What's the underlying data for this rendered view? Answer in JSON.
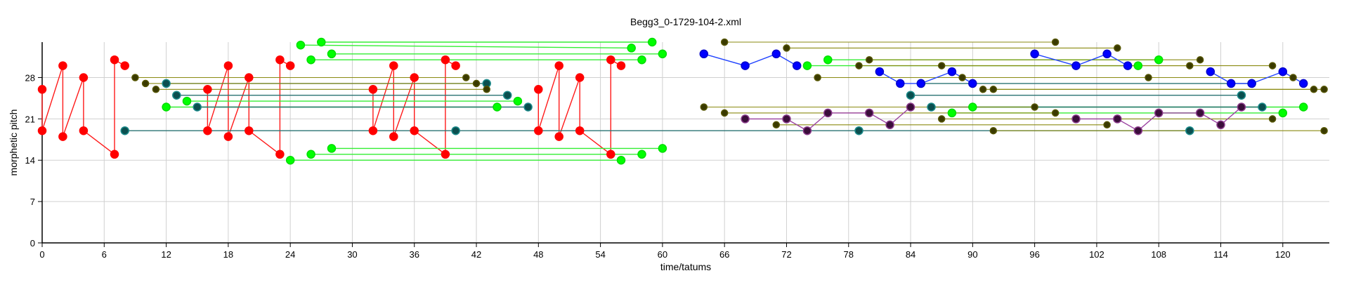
{
  "chart_data": {
    "type": "scatter",
    "title": "Begg3_0-1729-104-2.xml",
    "xlabel": "time/tatums",
    "ylabel": "morphetic pitch",
    "xlim": [
      0,
      124.5
    ],
    "ylim": [
      0,
      34
    ],
    "xticks": [
      0,
      6,
      12,
      18,
      24,
      30,
      36,
      42,
      48,
      54,
      60,
      66,
      72,
      78,
      84,
      90,
      96,
      102,
      108,
      114,
      120
    ],
    "yticks": [
      0,
      7,
      14,
      21,
      28
    ],
    "grid": true,
    "colors": {
      "red": "#ff1a1a",
      "green": "#00ff00",
      "teal": "#1a6b6b",
      "olive": "#888800",
      "blue": "#0000ff",
      "purple": "#800080"
    },
    "series": [
      {
        "color": "red",
        "style": "line",
        "points": [
          [
            0,
            26
          ],
          [
            0,
            19
          ],
          [
            2,
            30
          ],
          [
            2,
            18
          ],
          [
            4,
            28
          ],
          [
            4,
            19
          ],
          [
            7,
            15
          ],
          [
            7,
            31
          ],
          [
            8,
            30
          ]
        ]
      },
      {
        "color": "red",
        "style": "line",
        "points": [
          [
            16,
            26
          ],
          [
            16,
            19
          ],
          [
            18,
            30
          ],
          [
            18,
            18
          ],
          [
            20,
            28
          ],
          [
            20,
            19
          ],
          [
            23,
            15
          ],
          [
            23,
            31
          ],
          [
            24,
            30
          ]
        ]
      },
      {
        "color": "red",
        "style": "line",
        "points": [
          [
            32,
            26
          ],
          [
            32,
            19
          ],
          [
            34,
            30
          ],
          [
            34,
            18
          ],
          [
            36,
            28
          ],
          [
            36,
            19
          ],
          [
            39,
            15
          ],
          [
            39,
            31
          ],
          [
            40,
            30
          ]
        ]
      },
      {
        "color": "red",
        "style": "line",
        "points": [
          [
            48,
            26
          ],
          [
            48,
            19
          ],
          [
            50,
            30
          ],
          [
            50,
            18
          ],
          [
            52,
            28
          ],
          [
            52,
            19
          ],
          [
            55,
            15
          ],
          [
            55,
            31
          ],
          [
            56,
            30
          ]
        ]
      },
      {
        "color": "green",
        "style": "line",
        "points": [
          [
            25,
            33.5
          ],
          [
            57,
            33
          ]
        ]
      },
      {
        "color": "green",
        "style": "line",
        "points": [
          [
            26,
            31
          ],
          [
            58,
            31
          ]
        ]
      },
      {
        "color": "green",
        "style": "line",
        "points": [
          [
            27,
            34
          ],
          [
            59,
            34
          ]
        ]
      },
      {
        "color": "green",
        "style": "line",
        "points": [
          [
            28,
            32
          ],
          [
            60,
            32
          ]
        ]
      },
      {
        "color": "green",
        "style": "line",
        "points": [
          [
            24,
            14
          ],
          [
            56,
            14
          ]
        ]
      },
      {
        "color": "green",
        "style": "line",
        "points": [
          [
            26,
            15
          ],
          [
            58,
            15
          ]
        ]
      },
      {
        "color": "green",
        "style": "line",
        "points": [
          [
            28,
            16
          ],
          [
            60,
            16
          ]
        ]
      },
      {
        "color": "green",
        "style": "line",
        "points": [
          [
            12,
            23
          ],
          [
            44,
            23
          ]
        ]
      },
      {
        "color": "green",
        "style": "line",
        "points": [
          [
            14,
            24
          ],
          [
            46,
            24
          ]
        ]
      },
      {
        "color": "green",
        "style": "line",
        "points": [
          [
            74,
            30
          ],
          [
            106,
            30
          ]
        ]
      },
      {
        "color": "green",
        "style": "line",
        "points": [
          [
            76,
            31
          ],
          [
            108,
            31
          ]
        ]
      },
      {
        "color": "green",
        "style": "line",
        "points": [
          [
            88,
            22
          ],
          [
            120,
            22
          ]
        ]
      },
      {
        "color": "green",
        "style": "line",
        "points": [
          [
            90,
            23
          ],
          [
            122,
            23
          ]
        ]
      },
      {
        "color": "teal",
        "style": "line",
        "points": [
          [
            8,
            19
          ],
          [
            40,
            19
          ],
          [
            79,
            19
          ],
          [
            111,
            19
          ]
        ]
      },
      {
        "color": "teal",
        "style": "line",
        "points": [
          [
            12,
            27
          ],
          [
            43,
            27
          ]
        ]
      },
      {
        "color": "teal",
        "style": "line",
        "points": [
          [
            13,
            25
          ],
          [
            45,
            25
          ]
        ]
      },
      {
        "color": "teal",
        "style": "line",
        "points": [
          [
            15,
            23
          ],
          [
            47,
            23
          ]
        ]
      },
      {
        "color": "teal",
        "style": "line",
        "points": [
          [
            84,
            25
          ],
          [
            116,
            25
          ]
        ]
      },
      {
        "color": "teal",
        "style": "line",
        "points": [
          [
            85,
            27
          ],
          [
            117,
            27
          ]
        ]
      },
      {
        "color": "teal",
        "style": "line",
        "points": [
          [
            86,
            23
          ],
          [
            118,
            23
          ]
        ]
      },
      {
        "color": "olive",
        "style": "line",
        "points": [
          [
            9,
            28
          ],
          [
            41,
            28
          ]
        ]
      },
      {
        "color": "olive",
        "style": "line",
        "points": [
          [
            10,
            27
          ],
          [
            42,
            27
          ]
        ]
      },
      {
        "color": "olive",
        "style": "line",
        "points": [
          [
            11,
            26
          ],
          [
            43,
            26
          ]
        ]
      },
      {
        "color": "olive",
        "style": "line",
        "points": [
          [
            66,
            34
          ],
          [
            98,
            34
          ]
        ]
      },
      {
        "color": "olive",
        "style": "line",
        "points": [
          [
            72,
            33
          ],
          [
            104,
            33
          ]
        ]
      },
      {
        "color": "olive",
        "style": "line",
        "points": [
          [
            75,
            28
          ],
          [
            107,
            28
          ]
        ]
      },
      {
        "color": "olive",
        "style": "line",
        "points": [
          [
            79,
            30
          ],
          [
            111,
            30
          ]
        ]
      },
      {
        "color": "olive",
        "style": "line",
        "points": [
          [
            80,
            31
          ],
          [
            112,
            31
          ]
        ]
      },
      {
        "color": "olive",
        "style": "line",
        "points": [
          [
            87,
            30
          ],
          [
            119,
            30
          ]
        ]
      },
      {
        "color": "olive",
        "style": "line",
        "points": [
          [
            89,
            28
          ],
          [
            121,
            28
          ]
        ]
      },
      {
        "color": "olive",
        "style": "line",
        "points": [
          [
            91,
            26
          ],
          [
            123,
            26
          ]
        ]
      },
      {
        "color": "olive",
        "style": "line",
        "points": [
          [
            92,
            26
          ],
          [
            124,
            26
          ]
        ]
      },
      {
        "color": "olive",
        "style": "line",
        "points": [
          [
            64,
            23
          ],
          [
            96,
            23
          ]
        ]
      },
      {
        "color": "olive",
        "style": "line",
        "points": [
          [
            66,
            22
          ],
          [
            98,
            22
          ]
        ]
      },
      {
        "color": "olive",
        "style": "line",
        "points": [
          [
            71,
            20
          ],
          [
            103,
            20
          ]
        ]
      },
      {
        "color": "olive",
        "style": "line",
        "points": [
          [
            87,
            21
          ],
          [
            119,
            21
          ]
        ]
      },
      {
        "color": "olive",
        "style": "line",
        "points": [
          [
            92,
            19
          ],
          [
            124,
            19
          ]
        ]
      },
      {
        "color": "blue",
        "style": "line",
        "points": [
          [
            64,
            32
          ],
          [
            68,
            30
          ],
          [
            71,
            32
          ],
          [
            73,
            30
          ]
        ]
      },
      {
        "color": "blue",
        "style": "line",
        "points": [
          [
            81,
            29
          ],
          [
            83,
            27
          ],
          [
            85,
            27
          ],
          [
            88,
            29
          ],
          [
            90,
            27
          ]
        ]
      },
      {
        "color": "blue",
        "style": "line",
        "points": [
          [
            96,
            32
          ],
          [
            100,
            30
          ],
          [
            103,
            32
          ],
          [
            105,
            30
          ]
        ]
      },
      {
        "color": "blue",
        "style": "line",
        "points": [
          [
            113,
            29
          ],
          [
            115,
            27
          ],
          [
            117,
            27
          ],
          [
            120,
            29
          ],
          [
            122,
            27
          ]
        ]
      },
      {
        "color": "purple",
        "style": "line",
        "points": [
          [
            68,
            21
          ],
          [
            72,
            21
          ],
          [
            74,
            19
          ],
          [
            76,
            22
          ],
          [
            80,
            22
          ],
          [
            82,
            20
          ],
          [
            84,
            23
          ]
        ]
      },
      {
        "color": "purple",
        "style": "line",
        "points": [
          [
            100,
            21
          ],
          [
            104,
            21
          ],
          [
            106,
            19
          ],
          [
            108,
            22
          ],
          [
            112,
            22
          ],
          [
            114,
            20
          ],
          [
            116,
            23
          ]
        ]
      }
    ]
  }
}
